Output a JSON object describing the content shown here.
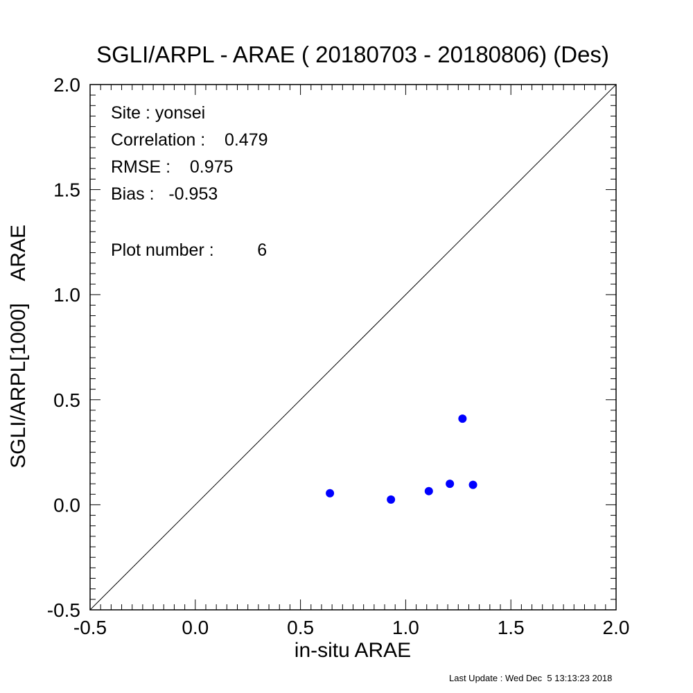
{
  "chart_data": {
    "type": "scatter",
    "title": "SGLI/ARPL - ARAE ( 20180703 - 20180806) (Des)",
    "xlabel": "in-situ ARAE",
    "ylabel": "SGLI/ARPL[1000]    ARAE",
    "xlim": [
      -0.5,
      2.0
    ],
    "ylim": [
      -0.5,
      2.0
    ],
    "xticks": [
      "-0.5",
      "0.0",
      "0.5",
      "1.0",
      "1.5",
      "2.0"
    ],
    "yticks": [
      "-0.5",
      "0.0",
      "0.5",
      "1.0",
      "1.5",
      "2.0"
    ],
    "one_to_one_line": true,
    "grid": false,
    "marker_color": "#0000ff",
    "points": [
      {
        "x": 0.64,
        "y": 0.055
      },
      {
        "x": 0.93,
        "y": 0.025
      },
      {
        "x": 1.11,
        "y": 0.065
      },
      {
        "x": 1.21,
        "y": 0.1
      },
      {
        "x": 1.27,
        "y": 0.41
      },
      {
        "x": 1.32,
        "y": 0.095
      }
    ],
    "stats": {
      "site": "Site : yonsei",
      "correlation": "Correlation :    0.479",
      "rmse": "RMSE :    0.975",
      "bias": "Bias :   -0.953",
      "plot_number": "Plot number :         6"
    }
  },
  "footer": "Last Update : Wed Dec  5 13:13:23 2018"
}
